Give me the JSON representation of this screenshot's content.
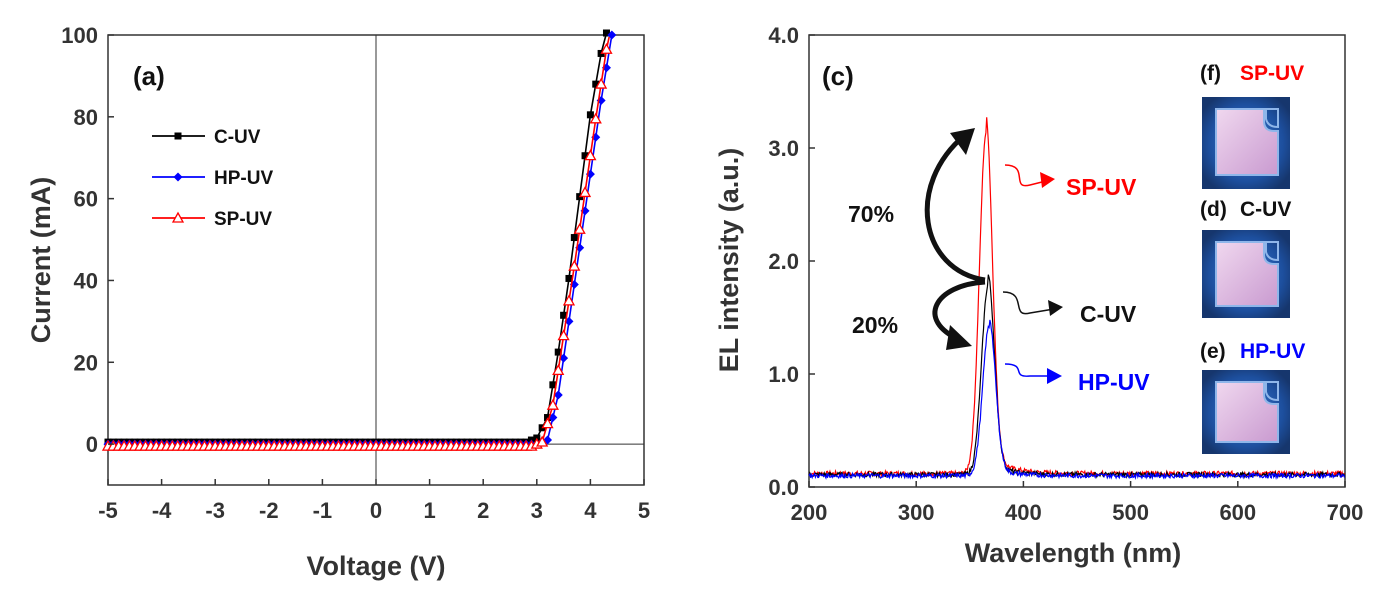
{
  "chart_data": [
    {
      "type": "line",
      "panel_label": "(a)",
      "xlabel": "Voltage (V)",
      "ylabel": "Current (mA)",
      "xlim": [
        -5,
        5
      ],
      "ylim": [
        -10,
        100
      ],
      "xticks": [
        -5,
        -4,
        -3,
        -2,
        -1,
        0,
        1,
        2,
        3,
        4,
        5
      ],
      "yticks": [
        0,
        20,
        40,
        60,
        80,
        100
      ],
      "legend_position": "upper-left",
      "series": [
        {
          "name": "C-UV",
          "color": "#000000",
          "marker": "square",
          "x": [
            -5,
            2.8,
            3.0,
            3.2,
            3.4,
            3.6,
            3.8,
            4.0,
            4.2,
            4.3
          ],
          "y": [
            0,
            0,
            1,
            6,
            22,
            40,
            60,
            80,
            95,
            100
          ]
        },
        {
          "name": "HP-UV",
          "color": "#0000ff",
          "marker": "diamond",
          "x": [
            -5,
            3.0,
            3.2,
            3.4,
            3.6,
            3.8,
            4.0,
            4.2,
            4.4
          ],
          "y": [
            0,
            0,
            1,
            12,
            30,
            48,
            66,
            84,
            100
          ]
        },
        {
          "name": "SP-UV",
          "color": "#ff0000",
          "marker": "triangle",
          "x": [
            -5,
            2.9,
            3.1,
            3.3,
            3.5,
            3.7,
            3.9,
            4.1,
            4.3,
            4.35
          ],
          "y": [
            0,
            0,
            1,
            10,
            27,
            44,
            62,
            80,
            97,
            100
          ]
        }
      ]
    },
    {
      "type": "line",
      "panel_label": "(c)",
      "xlabel": "Wavelength (nm)",
      "ylabel": "EL intensity (a.u.)",
      "xlim": [
        200,
        700
      ],
      "ylim": [
        0,
        4.0
      ],
      "xticks": [
        200,
        300,
        400,
        500,
        600,
        700
      ],
      "yticks": [
        "0.0",
        "1.0",
        "2.0",
        "3.0",
        "4.0"
      ],
      "series": [
        {
          "name": "SP-UV",
          "color": "#ff0000",
          "baseline": 0.12,
          "peak_x": 365,
          "peak_y": 3.12,
          "width": 6
        },
        {
          "name": "C-UV",
          "color": "#000000",
          "baseline": 0.11,
          "peak_x": 367,
          "peak_y": 1.78,
          "width": 6
        },
        {
          "name": "HP-UV",
          "color": "#0000ff",
          "baseline": 0.1,
          "peak_x": 368,
          "peak_y": 1.42,
          "width": 6
        }
      ],
      "annotations": {
        "pct_70": "70%",
        "pct_20": "20%",
        "label_sp": "SP-UV",
        "label_c": "C-UV",
        "label_hp": "HP-UV"
      },
      "insets": [
        {
          "tag": "(f)",
          "name": "SP-UV",
          "color": "#ff0000"
        },
        {
          "tag": "(d)",
          "name": "C-UV",
          "color": "#000000"
        },
        {
          "tag": "(e)",
          "name": "HP-UV",
          "color": "#0000ff"
        }
      ]
    }
  ]
}
